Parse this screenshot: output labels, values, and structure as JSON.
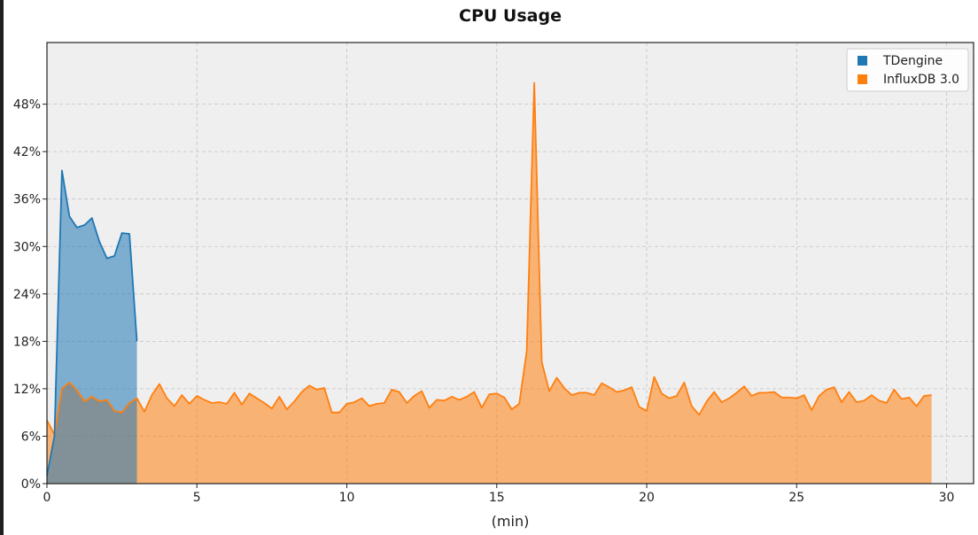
{
  "chart_data": {
    "type": "area",
    "title": "CPU Usage",
    "xlabel": "(min)",
    "ylabel": "",
    "xlim": [
      0,
      30.9
    ],
    "ylim": [
      0,
      55.8
    ],
    "x_ticks": [
      0,
      5,
      10,
      15,
      20,
      25,
      30
    ],
    "y_ticks": [
      0,
      6,
      12,
      18,
      24,
      30,
      36,
      42,
      48
    ],
    "y_tick_format": "%",
    "grid": true,
    "legend_position": "top-right",
    "series": [
      {
        "name": "TDengine",
        "color": "#1f77b4",
        "x": [
          0,
          0.25,
          0.5,
          0.75,
          1.0,
          1.25,
          1.5,
          1.75,
          2.0,
          2.25,
          2.5,
          2.75,
          3.0
        ],
        "y": [
          1,
          6,
          39.6,
          33.8,
          32.4,
          32.7,
          33.6,
          30.6,
          28.5,
          28.8,
          31.7,
          31.6,
          18
        ]
      },
      {
        "name": "InfluxDB 3.0",
        "color": "#ff7f0e",
        "x": [
          0,
          0.25,
          0.5,
          0.75,
          1.0,
          1.25,
          1.5,
          1.75,
          2.0,
          2.25,
          2.5,
          2.75,
          3.0,
          3.25,
          3.5,
          3.75,
          4.0,
          4.25,
          4.5,
          4.75,
          5.0,
          5.25,
          5.5,
          5.75,
          6.0,
          6.25,
          6.5,
          6.75,
          7.0,
          7.25,
          7.5,
          7.75,
          8.0,
          8.25,
          8.5,
          8.75,
          9.0,
          9.25,
          9.5,
          9.75,
          10.0,
          10.25,
          10.5,
          10.75,
          11.0,
          11.25,
          11.5,
          11.75,
          12.0,
          12.25,
          12.5,
          12.75,
          13.0,
          13.25,
          13.5,
          13.75,
          14.0,
          14.25,
          14.5,
          14.75,
          15.0,
          15.25,
          15.5,
          15.75,
          16.0,
          16.25,
          16.5,
          16.75,
          17.0,
          17.25,
          17.5,
          17.75,
          18.0,
          18.25,
          18.5,
          18.75,
          19.0,
          19.25,
          19.5,
          19.75,
          20.0,
          20.25,
          20.5,
          20.75,
          21.0,
          21.25,
          21.5,
          21.75,
          22.0,
          22.25,
          22.5,
          22.75,
          23.0,
          23.25,
          23.5,
          23.75,
          24.0,
          24.25,
          24.5,
          24.75,
          25.0,
          25.25,
          25.5,
          25.75,
          26.0,
          26.25,
          26.5,
          26.75,
          27.0,
          27.25,
          27.5,
          27.75,
          28.0,
          28.25,
          28.5,
          28.75,
          29.0,
          29.25,
          29.5
        ],
        "y": [
          8,
          6.2,
          12,
          12.8,
          11.8,
          10.4,
          11,
          10.4,
          10.6,
          9.2,
          9,
          10.2,
          10.8,
          9.1,
          11.2,
          12.6,
          10.8,
          9.8,
          11.2,
          10.1,
          11.1,
          10.6,
          10.2,
          10.3,
          10.1,
          11.5,
          10,
          11.4,
          10.8,
          10.2,
          9.5,
          11,
          9.4,
          10.4,
          11.6,
          12.4,
          11.9,
          12.1,
          9,
          9,
          10.1,
          10.3,
          10.8,
          9.8,
          10.1,
          10.2,
          11.9,
          11.6,
          10.2,
          11.1,
          11.7,
          9.6,
          10.6,
          10.5,
          11,
          10.6,
          11,
          11.6,
          9.6,
          11.3,
          11.4,
          10.9,
          9.4,
          10.1,
          16.8,
          50.7,
          15.4,
          11.7,
          13.4,
          12.1,
          11.2,
          11.5,
          11.5,
          11.2,
          12.7,
          12.2,
          11.6,
          11.8,
          12.2,
          9.7,
          9.2,
          13.5,
          11.4,
          10.8,
          11.1,
          12.8,
          9.8,
          8.7,
          10.4,
          11.6,
          10.3,
          10.8,
          11.5,
          12.3,
          11.1,
          11.5,
          11.5,
          11.6,
          10.9,
          10.9,
          10.8,
          11.2,
          9.3,
          11.1,
          11.9,
          12.2,
          10.3,
          11.6,
          10.3,
          10.5,
          11.2,
          10.5,
          10.2,
          11.9,
          10.7,
          10.9,
          9.8,
          11.1,
          11.2
        ]
      }
    ]
  }
}
